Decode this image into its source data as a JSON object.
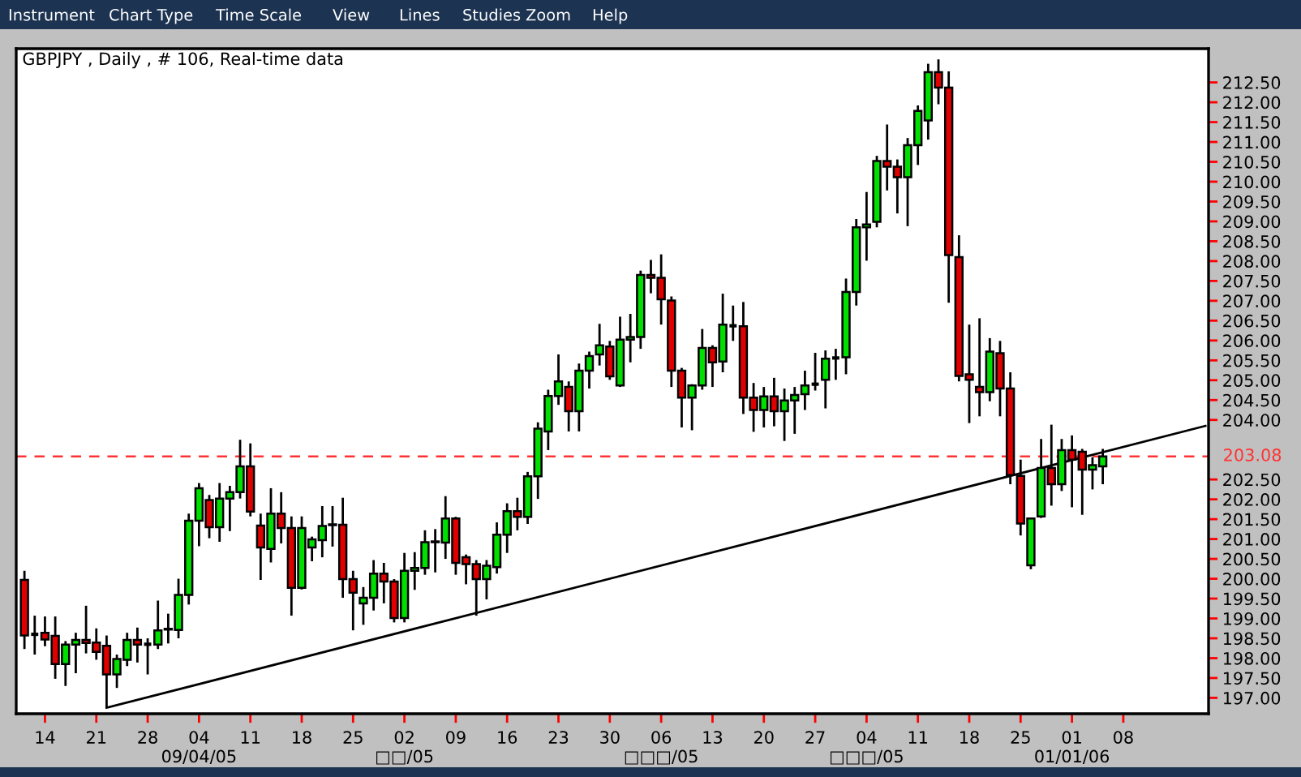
{
  "chart_data": {
    "type": "candlestick",
    "title": "GBPJPY , Daily , # 106, Real-time data",
    "annotations": [
      "Instrument",
      "Chart Type",
      "Time Scale",
      "View",
      "Lines",
      "Studies",
      "Zoom",
      "Help"
    ],
    "ylim": [
      196.6,
      213.35
    ],
    "categories": [
      null,
      null,
      "14",
      null,
      null,
      null,
      null,
      "21",
      null,
      null,
      null,
      null,
      "28",
      null,
      null,
      null,
      null,
      "04\n09/04/05",
      null,
      null,
      null,
      null,
      "11",
      null,
      null,
      null,
      null,
      "18",
      null,
      null,
      null,
      null,
      "25",
      null,
      null,
      null,
      null,
      "02\n□□/05",
      null,
      null,
      null,
      null,
      "09",
      null,
      null,
      null,
      null,
      "16",
      null,
      null,
      null,
      null,
      "23",
      null,
      null,
      null,
      null,
      "30",
      null,
      null,
      null,
      null,
      "06\n□□□/05",
      null,
      null,
      null,
      null,
      "13",
      null,
      null,
      null,
      null,
      "20",
      null,
      null,
      null,
      null,
      "27",
      null,
      null,
      null,
      null,
      "04\n□□□/05",
      null,
      null,
      null,
      null,
      "11",
      null,
      null,
      null,
      null,
      "18",
      null,
      null,
      null,
      null,
      "25",
      null,
      null,
      null,
      null,
      "01\n01/01/06",
      null,
      null,
      null,
      null,
      "08",
      null,
      null,
      null,
      null,
      null,
      null,
      null,
      null
    ],
    "yticks": [
      {
        "value": 197.0,
        "label": "197.00"
      },
      {
        "value": 197.5,
        "label": "197.50"
      },
      {
        "value": 198.0,
        "label": "198.00"
      },
      {
        "value": 198.5,
        "label": "198.50"
      },
      {
        "value": 199.0,
        "label": "199.00"
      },
      {
        "value": 199.5,
        "label": "199.50"
      },
      {
        "value": 200.0,
        "label": "200.00"
      },
      {
        "value": 200.5,
        "label": "200.50"
      },
      {
        "value": 201.0,
        "label": "201.00"
      },
      {
        "value": 201.5,
        "label": "201.50"
      },
      {
        "value": 202.0,
        "label": "202.00"
      },
      {
        "value": 202.5,
        "label": "202.50"
      },
      {
        "value": 204.0,
        "label": "204.00"
      },
      {
        "value": 204.5,
        "label": "204.50"
      },
      {
        "value": 205.0,
        "label": "205.00"
      },
      {
        "value": 205.5,
        "label": "205.50"
      },
      {
        "value": 206.0,
        "label": "206.00"
      },
      {
        "value": 206.5,
        "label": "206.50"
      },
      {
        "value": 207.0,
        "label": "207.00"
      },
      {
        "value": 207.5,
        "label": "207.50"
      },
      {
        "value": 208.0,
        "label": "208.00"
      },
      {
        "value": 208.5,
        "label": "208.50"
      },
      {
        "value": 209.0,
        "label": "209.00"
      },
      {
        "value": 209.5,
        "label": "209.50"
      },
      {
        "value": 210.0,
        "label": "210.00"
      },
      {
        "value": 210.5,
        "label": "210.50"
      },
      {
        "value": 211.0,
        "label": "211.00"
      },
      {
        "value": 211.5,
        "label": "211.50"
      },
      {
        "value": 212.0,
        "label": "212.00"
      },
      {
        "value": 212.5,
        "label": "212.50"
      }
    ],
    "ref_lines": [
      {
        "axis": "y",
        "value": 203.08,
        "label": "203.08",
        "color": "#ff3333",
        "line_style": "dashed"
      }
    ],
    "ohlc": [
      [
        199.97,
        200.2,
        198.23,
        198.57
      ],
      [
        198.6,
        199.07,
        198.09,
        198.6
      ],
      [
        198.64,
        199.05,
        198.3,
        198.47
      ],
      [
        198.56,
        199.05,
        197.48,
        197.85
      ],
      [
        197.85,
        198.43,
        197.3,
        198.34
      ],
      [
        198.34,
        198.64,
        197.62,
        198.46
      ],
      [
        198.46,
        199.32,
        198.12,
        198.38
      ],
      [
        198.39,
        198.75,
        197.96,
        198.16
      ],
      [
        198.31,
        198.57,
        196.75,
        197.59
      ],
      [
        197.59,
        198.09,
        197.25,
        197.98
      ],
      [
        197.96,
        198.64,
        197.8,
        198.46
      ],
      [
        198.46,
        198.77,
        197.89,
        198.34
      ],
      [
        198.35,
        198.5,
        197.59,
        198.33
      ],
      [
        198.34,
        199.45,
        198.23,
        198.7
      ],
      [
        198.72,
        199.12,
        198.37,
        198.74
      ],
      [
        198.71,
        200.0,
        198.5,
        199.59
      ],
      [
        199.59,
        201.64,
        199.35,
        201.46
      ],
      [
        201.46,
        202.41,
        200.82,
        202.28
      ],
      [
        201.98,
        202.11,
        201.02,
        201.3
      ],
      [
        201.3,
        202.41,
        200.93,
        202.02
      ],
      [
        202.02,
        202.34,
        201.2,
        202.18
      ],
      [
        202.18,
        203.5,
        202.02,
        202.83
      ],
      [
        202.83,
        203.41,
        201.57,
        201.69
      ],
      [
        201.34,
        201.64,
        199.97,
        200.79
      ],
      [
        200.75,
        202.28,
        200.41,
        201.64
      ],
      [
        201.64,
        202.18,
        200.89,
        201.28
      ],
      [
        201.28,
        201.57,
        199.07,
        199.77
      ],
      [
        199.77,
        201.57,
        199.73,
        201.28
      ],
      [
        200.79,
        201.06,
        200.44,
        200.99
      ],
      [
        200.97,
        201.83,
        200.54,
        201.33
      ],
      [
        201.35,
        201.83,
        200.81,
        201.37
      ],
      [
        201.36,
        202.04,
        199.52,
        199.99
      ],
      [
        199.99,
        200.2,
        198.7,
        199.65
      ],
      [
        199.38,
        199.79,
        198.84,
        199.52
      ],
      [
        199.52,
        200.47,
        199.2,
        200.13
      ],
      [
        200.13,
        200.4,
        199.38,
        199.93
      ],
      [
        199.93,
        199.99,
        198.9,
        199.01
      ],
      [
        199.01,
        200.65,
        198.9,
        200.2
      ],
      [
        200.2,
        200.67,
        199.72,
        200.27
      ],
      [
        200.27,
        201.22,
        200.1,
        200.92
      ],
      [
        200.92,
        201.25,
        200.16,
        200.94
      ],
      [
        200.91,
        202.08,
        200.5,
        201.52
      ],
      [
        201.52,
        201.56,
        200.1,
        200.4
      ],
      [
        200.54,
        200.61,
        199.86,
        200.37
      ],
      [
        200.37,
        200.47,
        199.07,
        199.99
      ],
      [
        199.99,
        200.47,
        199.48,
        200.33
      ],
      [
        200.29,
        201.42,
        200.13,
        201.11
      ],
      [
        201.11,
        201.9,
        200.65,
        201.7
      ],
      [
        201.7,
        202.04,
        201.22,
        201.56
      ],
      [
        201.56,
        202.69,
        201.38,
        202.58
      ],
      [
        202.58,
        203.94,
        202.01,
        203.78
      ],
      [
        203.71,
        204.76,
        203.24,
        204.6
      ],
      [
        204.6,
        205.65,
        204.38,
        204.97
      ],
      [
        204.83,
        204.97,
        203.71,
        204.22
      ],
      [
        204.22,
        205.42,
        203.71,
        205.24
      ],
      [
        205.24,
        205.72,
        204.79,
        205.61
      ],
      [
        205.65,
        206.42,
        205.37,
        205.88
      ],
      [
        205.85,
        205.99,
        205.01,
        205.1
      ],
      [
        204.87,
        206.6,
        204.83,
        206.02
      ],
      [
        206.02,
        206.67,
        205.45,
        206.09
      ],
      [
        206.09,
        207.76,
        205.79,
        207.65
      ],
      [
        207.65,
        208.03,
        207.19,
        207.58
      ],
      [
        207.58,
        208.17,
        206.4,
        207.04
      ],
      [
        207.01,
        207.11,
        204.83,
        205.24
      ],
      [
        205.24,
        205.31,
        203.81,
        204.56
      ],
      [
        204.56,
        204.9,
        203.74,
        204.87
      ],
      [
        204.87,
        206.29,
        204.76,
        205.81
      ],
      [
        205.81,
        205.88,
        204.83,
        205.45
      ],
      [
        205.47,
        207.18,
        205.2,
        206.4
      ],
      [
        206.37,
        206.88,
        205.99,
        206.37
      ],
      [
        206.36,
        206.97,
        204.15,
        204.56
      ],
      [
        204.56,
        204.93,
        203.7,
        204.25
      ],
      [
        204.25,
        204.83,
        203.81,
        204.59
      ],
      [
        204.59,
        205.06,
        203.84,
        204.22
      ],
      [
        204.22,
        204.79,
        203.47,
        204.49
      ],
      [
        204.49,
        204.83,
        203.65,
        204.63
      ],
      [
        204.65,
        205.24,
        204.25,
        204.87
      ],
      [
        204.9,
        205.69,
        204.74,
        204.9
      ],
      [
        205.01,
        205.75,
        204.29,
        205.54
      ],
      [
        205.56,
        205.79,
        205.01,
        205.56
      ],
      [
        205.58,
        207.56,
        205.15,
        207.22
      ],
      [
        207.22,
        209.06,
        206.88,
        208.85
      ],
      [
        208.85,
        209.74,
        208.01,
        208.92
      ],
      [
        208.99,
        210.65,
        208.85,
        210.52
      ],
      [
        210.52,
        211.44,
        209.78,
        210.38
      ],
      [
        210.38,
        210.56,
        209.2,
        210.11
      ],
      [
        210.11,
        211.1,
        208.88,
        210.92
      ],
      [
        210.92,
        211.92,
        210.42,
        211.78
      ],
      [
        211.54,
        212.97,
        211.06,
        212.76
      ],
      [
        212.76,
        213.08,
        211.95,
        212.37
      ],
      [
        212.37,
        212.78,
        206.95,
        208.15
      ],
      [
        208.1,
        208.65,
        204.97,
        205.11
      ],
      [
        205.15,
        206.4,
        203.92,
        205.01
      ],
      [
        204.83,
        206.56,
        204.09,
        204.7
      ],
      [
        204.7,
        206.06,
        204.47,
        205.72
      ],
      [
        205.68,
        205.99,
        204.09,
        204.79
      ],
      [
        204.79,
        205.2,
        202.38,
        202.61
      ],
      [
        202.59,
        203.0,
        201.09,
        201.39
      ],
      [
        200.34,
        201.52,
        200.24,
        201.52
      ],
      [
        201.57,
        203.52,
        201.53,
        202.79
      ],
      [
        202.79,
        203.88,
        201.84,
        202.38
      ],
      [
        202.38,
        203.52,
        202.21,
        203.24
      ],
      [
        203.24,
        203.61,
        201.8,
        203.0
      ],
      [
        203.2,
        203.27,
        201.61,
        202.75
      ],
      [
        202.75,
        203.06,
        202.25,
        202.86
      ],
      [
        202.83,
        203.27,
        202.38,
        203.08
      ],
      null,
      null,
      null,
      null,
      null,
      null,
      null,
      null,
      null,
      null
    ],
    "colors": [
      "#e00000",
      "#000000",
      "#e00000",
      "#e00000",
      "#00e000",
      "#00e000",
      "#e00000",
      "#e00000",
      "#e00000",
      "#00e000",
      "#00e000",
      "#e00000",
      "#000000",
      "#00e000",
      "#000000",
      "#00e000",
      "#00e000",
      "#00e000",
      "#e00000",
      "#00e000",
      "#00e000",
      "#00e000",
      "#e00000",
      "#e00000",
      "#00e000",
      "#e00000",
      "#e00000",
      "#00e000",
      "#00e000",
      "#00e000",
      "#000000",
      "#e00000",
      "#e00000",
      "#00e000",
      "#00e000",
      "#e00000",
      "#e00000",
      "#00e000",
      "#00e000",
      "#00e000",
      "#000000",
      "#00e000",
      "#e00000",
      "#e00000",
      "#e00000",
      "#00e000",
      "#00e000",
      "#00e000",
      "#e00000",
      "#00e000",
      "#00e000",
      "#00e000",
      "#00e000",
      "#e00000",
      "#00e000",
      "#00e000",
      "#00e000",
      "#e00000",
      "#00e000",
      "#00e000",
      "#00e000",
      "#e00000",
      "#e00000",
      "#e00000",
      "#e00000",
      "#00e000",
      "#00e000",
      "#e00000",
      "#00e000",
      "#000000",
      "#e00000",
      "#e00000",
      "#00e000",
      "#e00000",
      "#00e000",
      "#00e000",
      "#00e000",
      "#000000",
      "#00e000",
      "#000000",
      "#00e000",
      "#00e000",
      "#00e000",
      "#00e000",
      "#e00000",
      "#e00000",
      "#00e000",
      "#00e000",
      "#00e000",
      "#e00000",
      "#e00000",
      "#e00000",
      "#e00000",
      "#e00000",
      "#00e000",
      "#e00000",
      "#e00000",
      "#e00000",
      "#00e000",
      "#00e000",
      "#e00000",
      "#00e000",
      "#e00000",
      "#e00000",
      "#00e000",
      "#00e000",
      null,
      null,
      null,
      null,
      null,
      null,
      null,
      null,
      null,
      null
    ],
    "series": [
      {
        "type": "line",
        "color": "#000000",
        "values": [
          null,
          null,
          null,
          null,
          null,
          null,
          null,
          null,
          196.75,
          null,
          null,
          null,
          null,
          null,
          null,
          null,
          null,
          null,
          null,
          null,
          null,
          null,
          null,
          null,
          null,
          null,
          null,
          null,
          null,
          null,
          null,
          null,
          null,
          null,
          null,
          null,
          null,
          null,
          null,
          null,
          null,
          null,
          null,
          null,
          null,
          null,
          null,
          null,
          null,
          null,
          null,
          null,
          null,
          null,
          null,
          null,
          null,
          null,
          null,
          null,
          null,
          null,
          null,
          null,
          null,
          null,
          null,
          null,
          null,
          null,
          null,
          null,
          null,
          null,
          null,
          null,
          null,
          null,
          null,
          null,
          null,
          null,
          null,
          null,
          null,
          null,
          null,
          null,
          null,
          null,
          null,
          null,
          null,
          null,
          null,
          null,
          null,
          null,
          null,
          null,
          null,
          null,
          null,
          null,
          null,
          null,
          null,
          null,
          null,
          null,
          null,
          null,
          null,
          null,
          null,
          203.85
        ]
      }
    ]
  }
}
